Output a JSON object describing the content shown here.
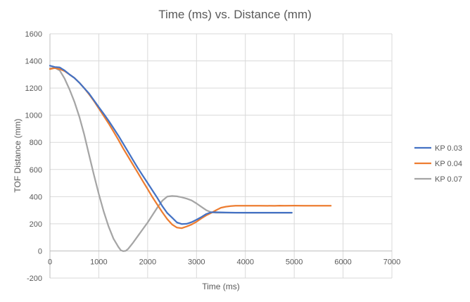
{
  "chart_data": {
    "type": "line",
    "title": "Time (ms) vs. Distance (mm)",
    "xlabel": "Time (ms)",
    "ylabel": "TOF Distance (mm)",
    "xlim": [
      0,
      7000
    ],
    "ylim": [
      -200,
      1600
    ],
    "x_ticks": [
      0,
      1000,
      2000,
      3000,
      4000,
      5000,
      6000,
      7000
    ],
    "y_ticks": [
      -200,
      0,
      200,
      400,
      600,
      800,
      1000,
      1200,
      1400,
      1600
    ],
    "grid": true,
    "legend_position": "right",
    "series": [
      {
        "name": "KP 0.03",
        "color": "#4472C4",
        "points": [
          [
            0,
            1365
          ],
          [
            100,
            1355
          ],
          [
            200,
            1352
          ],
          [
            300,
            1330
          ],
          [
            400,
            1300
          ],
          [
            500,
            1275
          ],
          [
            600,
            1240
          ],
          [
            700,
            1200
          ],
          [
            800,
            1160
          ],
          [
            900,
            1110
          ],
          [
            1000,
            1060
          ],
          [
            1100,
            1010
          ],
          [
            1200,
            960
          ],
          [
            1300,
            905
          ],
          [
            1400,
            850
          ],
          [
            1500,
            790
          ],
          [
            1600,
            730
          ],
          [
            1700,
            670
          ],
          [
            1800,
            610
          ],
          [
            1900,
            555
          ],
          [
            2000,
            500
          ],
          [
            2100,
            445
          ],
          [
            2200,
            390
          ],
          [
            2300,
            330
          ],
          [
            2400,
            280
          ],
          [
            2500,
            245
          ],
          [
            2600,
            210
          ],
          [
            2700,
            198
          ],
          [
            2800,
            200
          ],
          [
            2900,
            212
          ],
          [
            3000,
            230
          ],
          [
            3100,
            250
          ],
          [
            3200,
            272
          ],
          [
            3300,
            285
          ],
          [
            3400,
            285
          ],
          [
            3600,
            283
          ],
          [
            3800,
            282
          ],
          [
            4000,
            282
          ],
          [
            4200,
            282
          ],
          [
            4400,
            282
          ],
          [
            4600,
            282
          ],
          [
            4800,
            282
          ],
          [
            4950,
            282
          ]
        ]
      },
      {
        "name": "KP 0.04",
        "color": "#ED7D31",
        "points": [
          [
            0,
            1340
          ],
          [
            100,
            1348
          ],
          [
            200,
            1340
          ],
          [
            300,
            1325
          ],
          [
            400,
            1300
          ],
          [
            500,
            1275
          ],
          [
            600,
            1240
          ],
          [
            700,
            1200
          ],
          [
            800,
            1155
          ],
          [
            900,
            1105
          ],
          [
            1000,
            1050
          ],
          [
            1100,
            995
          ],
          [
            1200,
            940
          ],
          [
            1300,
            880
          ],
          [
            1400,
            820
          ],
          [
            1500,
            755
          ],
          [
            1600,
            695
          ],
          [
            1700,
            635
          ],
          [
            1800,
            575
          ],
          [
            1900,
            515
          ],
          [
            2000,
            455
          ],
          [
            2100,
            395
          ],
          [
            2200,
            340
          ],
          [
            2300,
            285
          ],
          [
            2400,
            235
          ],
          [
            2500,
            195
          ],
          [
            2600,
            172
          ],
          [
            2700,
            168
          ],
          [
            2800,
            180
          ],
          [
            2900,
            195
          ],
          [
            3000,
            215
          ],
          [
            3100,
            240
          ],
          [
            3200,
            262
          ],
          [
            3300,
            280
          ],
          [
            3400,
            300
          ],
          [
            3500,
            318
          ],
          [
            3600,
            326
          ],
          [
            3700,
            330
          ],
          [
            3800,
            333
          ],
          [
            4000,
            333
          ],
          [
            4300,
            333
          ],
          [
            4600,
            332
          ],
          [
            4700,
            334
          ],
          [
            4800,
            333
          ],
          [
            5000,
            334
          ],
          [
            5200,
            333
          ],
          [
            5400,
            333
          ],
          [
            5600,
            333
          ],
          [
            5750,
            333
          ]
        ]
      },
      {
        "name": "KP 0.07",
        "color": "#A5A5A5",
        "points": [
          [
            0,
            1345
          ],
          [
            100,
            1350
          ],
          [
            200,
            1330
          ],
          [
            300,
            1270
          ],
          [
            400,
            1190
          ],
          [
            500,
            1100
          ],
          [
            600,
            990
          ],
          [
            700,
            860
          ],
          [
            800,
            710
          ],
          [
            900,
            560
          ],
          [
            1000,
            420
          ],
          [
            1100,
            290
          ],
          [
            1200,
            180
          ],
          [
            1300,
            90
          ],
          [
            1400,
            30
          ],
          [
            1450,
            5
          ],
          [
            1500,
            -2
          ],
          [
            1550,
            0
          ],
          [
            1600,
            15
          ],
          [
            1700,
            60
          ],
          [
            1800,
            110
          ],
          [
            1900,
            160
          ],
          [
            2000,
            210
          ],
          [
            2100,
            265
          ],
          [
            2200,
            320
          ],
          [
            2300,
            370
          ],
          [
            2400,
            400
          ],
          [
            2500,
            405
          ],
          [
            2600,
            402
          ],
          [
            2700,
            395
          ],
          [
            2800,
            385
          ],
          [
            2900,
            372
          ],
          [
            3000,
            350
          ],
          [
            3100,
            325
          ],
          [
            3200,
            300
          ],
          [
            3300,
            285
          ],
          [
            3400,
            282
          ],
          [
            3600,
            282
          ],
          [
            3800,
            282
          ],
          [
            4000,
            281
          ],
          [
            4200,
            282
          ],
          [
            4400,
            281
          ],
          [
            4600,
            282
          ],
          [
            4800,
            281
          ],
          [
            4950,
            281
          ]
        ]
      }
    ]
  }
}
